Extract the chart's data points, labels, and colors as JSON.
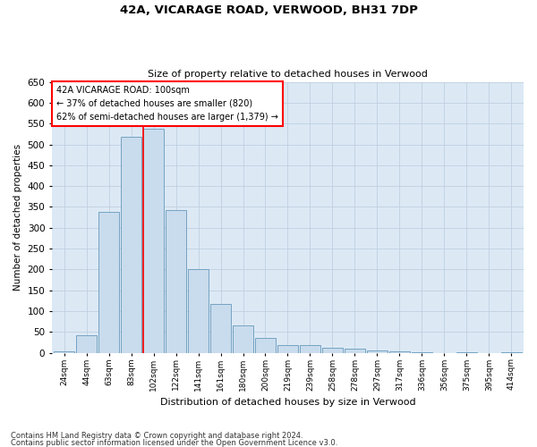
{
  "title1": "42A, VICARAGE ROAD, VERWOOD, BH31 7DP",
  "title2": "Size of property relative to detached houses in Verwood",
  "xlabel": "Distribution of detached houses by size in Verwood",
  "ylabel": "Number of detached properties",
  "categories": [
    "24sqm",
    "44sqm",
    "63sqm",
    "83sqm",
    "102sqm",
    "122sqm",
    "141sqm",
    "161sqm",
    "180sqm",
    "200sqm",
    "219sqm",
    "239sqm",
    "258sqm",
    "278sqm",
    "297sqm",
    "317sqm",
    "336sqm",
    "356sqm",
    "375sqm",
    "395sqm",
    "414sqm"
  ],
  "values": [
    3,
    42,
    338,
    518,
    537,
    343,
    202,
    118,
    66,
    35,
    18,
    18,
    12,
    10,
    6,
    3,
    1,
    0,
    2,
    0,
    1
  ],
  "bar_color": "#c9dced",
  "bar_edge_color": "#6699bb",
  "annotation_text": "42A VICARAGE ROAD: 100sqm\n← 37% of detached houses are smaller (820)\n62% of semi-detached houses are larger (1,379) →",
  "annotation_box_color": "white",
  "annotation_box_edge": "red",
  "vline_color": "red",
  "vline_x_index": 4,
  "ylim": [
    0,
    650
  ],
  "yticks": [
    0,
    50,
    100,
    150,
    200,
    250,
    300,
    350,
    400,
    450,
    500,
    550,
    600,
    650
  ],
  "grid_color": "#c0cfe0",
  "bg_color": "#dce9f5",
  "fig_bg_color": "#ffffff",
  "footnote1": "Contains HM Land Registry data © Crown copyright and database right 2024.",
  "footnote2": "Contains public sector information licensed under the Open Government Licence v3.0."
}
